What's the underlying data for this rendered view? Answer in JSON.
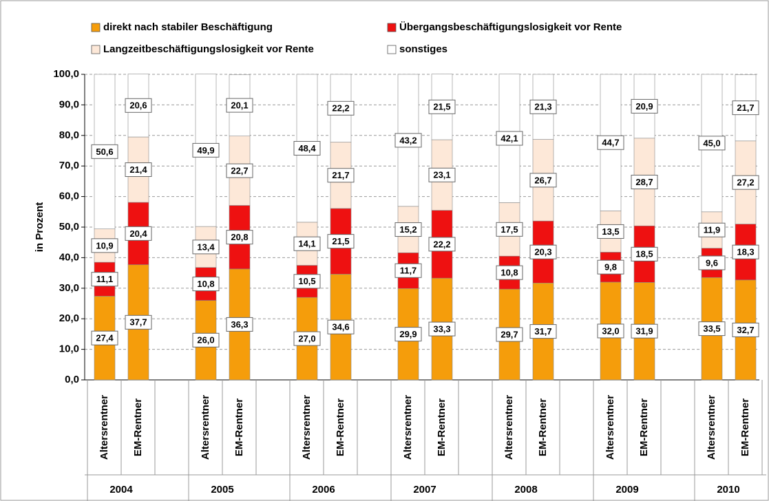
{
  "chart_data": {
    "type": "stacked-bar",
    "y_label": "in Prozent",
    "categories": [
      "Altersrentner",
      "EM-Rentner",
      "Altersrentner",
      "EM-Rentner",
      "Altersrentner",
      "EM-Rentner",
      "Altersrentner",
      "EM-Rentner",
      "Altersrentner",
      "EM-Rentner",
      "Altersrentner",
      "EM-Rentner",
      "Altersrentner",
      "EM-Rentner"
    ],
    "groups": [
      "2004",
      "2005",
      "2006",
      "2007",
      "2008",
      "2009",
      "2010"
    ],
    "series": [
      {
        "name": "direkt nach stabiler Beschäftigung",
        "color": "#f59d0b",
        "values": [
          27.4,
          37.7,
          26.0,
          36.3,
          27.0,
          34.6,
          29.9,
          33.3,
          29.7,
          31.7,
          32.0,
          31.9,
          33.5,
          32.7
        ],
        "value_labels": [
          "27,4",
          "37,7",
          "26,0",
          "36,3",
          "27,0",
          "34,6",
          "29,9",
          "33,3",
          "29,7",
          "31,7",
          "32,0",
          "31,9",
          "33,5",
          "32,7"
        ]
      },
      {
        "name": "Übergangsbeschäftigungslosigkeit vor Rente",
        "color": "#ee1111",
        "values": [
          11.1,
          20.4,
          10.8,
          20.8,
          10.5,
          21.5,
          11.7,
          22.2,
          10.8,
          20.3,
          9.8,
          18.5,
          9.6,
          18.3
        ],
        "value_labels": [
          "11,1",
          "20,4",
          "10,8",
          "20,8",
          "10,5",
          "21,5",
          "11,7",
          "22,2",
          "10,8",
          "20,3",
          "9,8",
          "18,5",
          "9,6",
          "18,3"
        ]
      },
      {
        "name": "Langzeitbeschäftigungslosigkeit vor Rente",
        "color": "#fde8d8",
        "values": [
          10.9,
          21.4,
          13.4,
          22.7,
          14.1,
          21.7,
          15.2,
          23.1,
          17.5,
          26.7,
          13.5,
          28.7,
          11.9,
          27.2
        ],
        "value_labels": [
          "10,9",
          "21,4",
          "13,4",
          "22,7",
          "14,1",
          "21,7",
          "15,2",
          "23,1",
          "17,5",
          "26,7",
          "13,5",
          "28,7",
          "11,9",
          "27,2"
        ]
      },
      {
        "name": "sonstiges",
        "color": "#ffffff",
        "values": [
          50.6,
          20.6,
          49.9,
          20.1,
          48.4,
          22.2,
          43.2,
          21.5,
          42.1,
          21.3,
          44.7,
          20.9,
          45.0,
          21.7
        ],
        "value_labels": [
          "50,6",
          "20,6",
          "49,9",
          "20,1",
          "48,4",
          "22,2",
          "43,2",
          "21,5",
          "42,1",
          "21,3",
          "44,7",
          "20,9",
          "45,0",
          "21,7"
        ]
      }
    ],
    "ylim": [
      0,
      100
    ],
    "yticks": [
      {
        "value": 0,
        "label": "0,0"
      },
      {
        "value": 10,
        "label": "10,0"
      },
      {
        "value": 20,
        "label": "20,0"
      },
      {
        "value": 30,
        "label": "30,0"
      },
      {
        "value": 40,
        "label": "40,0"
      },
      {
        "value": 50,
        "label": "50,0"
      },
      {
        "value": 60,
        "label": "60,0"
      },
      {
        "value": 70,
        "label": "70,0"
      },
      {
        "value": 80,
        "label": "80,0"
      },
      {
        "value": 90,
        "label": "90,0"
      },
      {
        "value": 100,
        "label": "100,0"
      }
    ],
    "grid": true
  }
}
